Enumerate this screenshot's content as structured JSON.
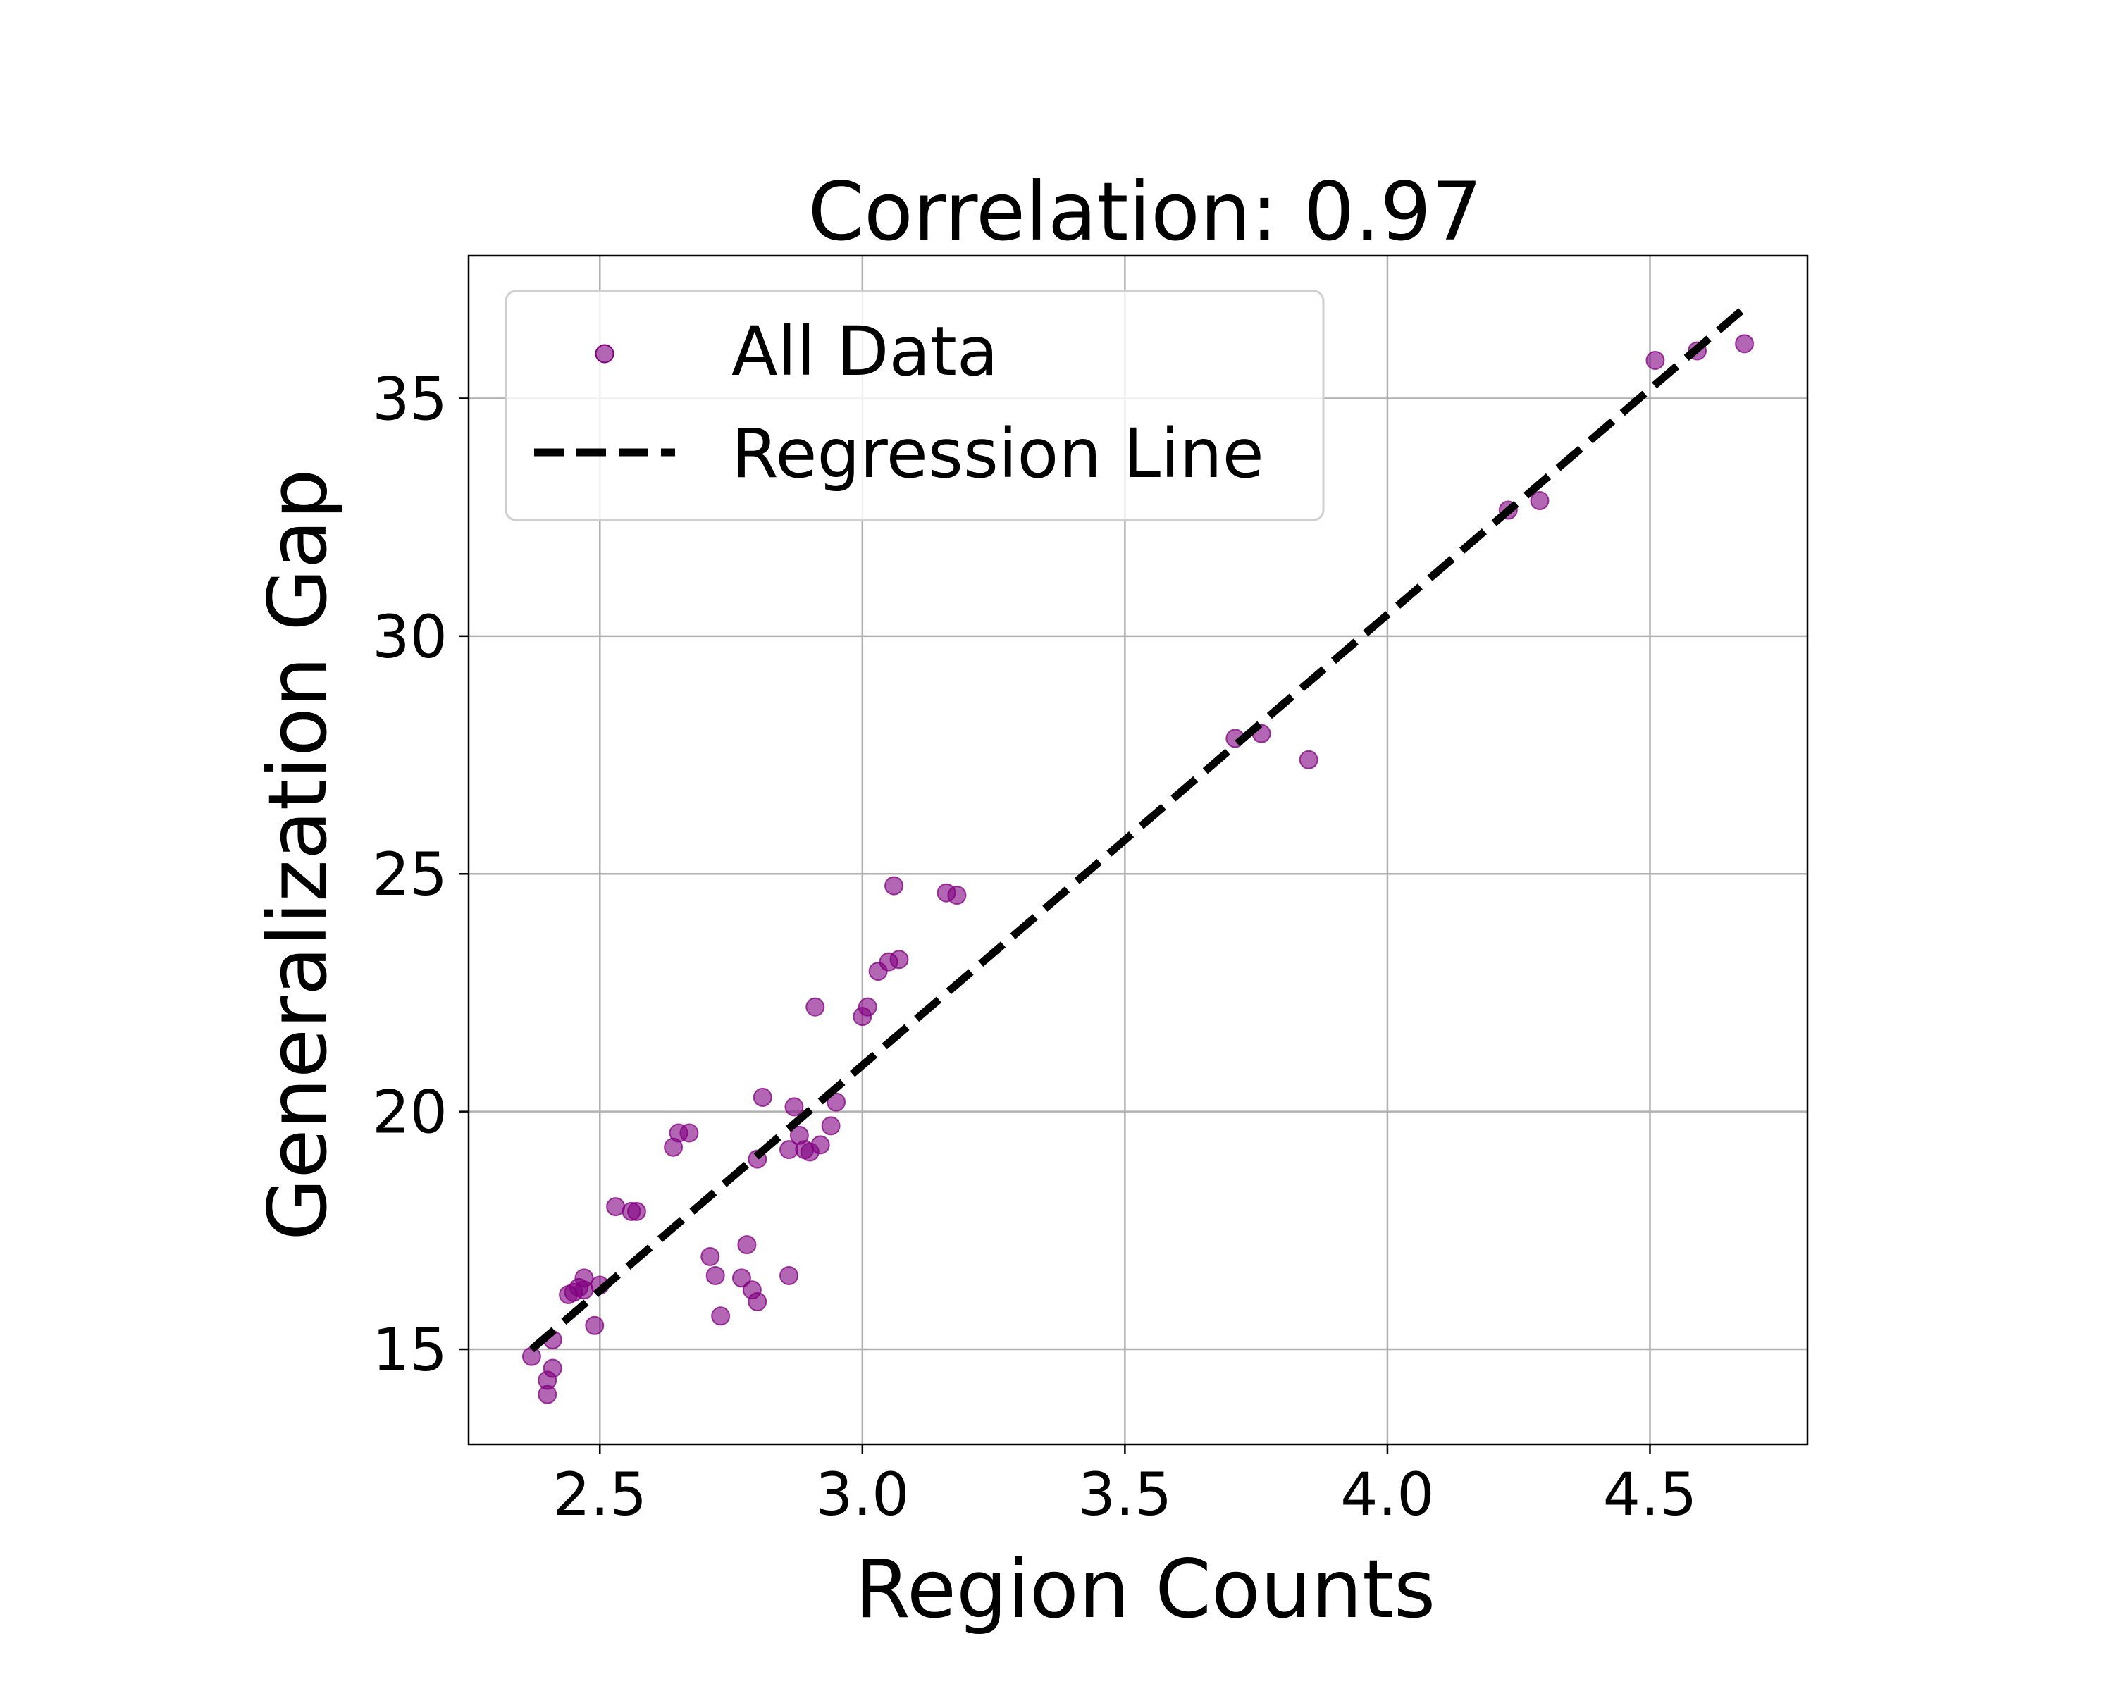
{
  "chart_data": {
    "type": "scatter",
    "title": "Correlation: 0.97",
    "xlabel": "Region Counts",
    "ylabel": "Generalization Gap",
    "xlim": [
      2.25,
      4.8
    ],
    "ylim": [
      13.0,
      38.0
    ],
    "xticks": [
      2.5,
      3.0,
      3.5,
      4.0,
      4.5
    ],
    "xtick_labels": [
      "2.5",
      "3.0",
      "3.5",
      "4.0",
      "4.5"
    ],
    "yticks": [
      15,
      20,
      25,
      30,
      35
    ],
    "ytick_labels": [
      "15",
      "20",
      "25",
      "30",
      "35"
    ],
    "grid": true,
    "legend_position": "top-left",
    "series": [
      {
        "name": "All Data",
        "type": "scatter",
        "color": "#800080",
        "points": [
          [
            2.37,
            14.85
          ],
          [
            2.4,
            14.05
          ],
          [
            2.4,
            14.35
          ],
          [
            2.41,
            14.6
          ],
          [
            2.41,
            15.2
          ],
          [
            2.44,
            16.15
          ],
          [
            2.45,
            16.2
          ],
          [
            2.46,
            16.3
          ],
          [
            2.47,
            16.5
          ],
          [
            2.47,
            16.25
          ],
          [
            2.49,
            15.5
          ],
          [
            2.5,
            16.35
          ],
          [
            2.53,
            18.0
          ],
          [
            2.56,
            17.9
          ],
          [
            2.57,
            17.9
          ],
          [
            2.64,
            19.25
          ],
          [
            2.65,
            19.55
          ],
          [
            2.67,
            19.55
          ],
          [
            2.71,
            16.95
          ],
          [
            2.72,
            16.55
          ],
          [
            2.73,
            15.7
          ],
          [
            2.77,
            16.5
          ],
          [
            2.78,
            17.2
          ],
          [
            2.79,
            16.25
          ],
          [
            2.8,
            16.0
          ],
          [
            2.8,
            19.0
          ],
          [
            2.81,
            20.3
          ],
          [
            2.86,
            19.2
          ],
          [
            2.86,
            16.55
          ],
          [
            2.87,
            20.1
          ],
          [
            2.88,
            19.5
          ],
          [
            2.89,
            19.2
          ],
          [
            2.9,
            19.15
          ],
          [
            2.91,
            22.2
          ],
          [
            2.92,
            19.3
          ],
          [
            2.94,
            19.7
          ],
          [
            2.95,
            20.2
          ],
          [
            3.0,
            22.0
          ],
          [
            3.01,
            22.2
          ],
          [
            3.03,
            22.95
          ],
          [
            3.05,
            23.15
          ],
          [
            3.06,
            24.75
          ],
          [
            3.07,
            23.2
          ],
          [
            3.16,
            24.6
          ],
          [
            3.18,
            24.55
          ],
          [
            3.71,
            27.85
          ],
          [
            3.76,
            27.95
          ],
          [
            3.85,
            27.4
          ],
          [
            4.23,
            32.65
          ],
          [
            4.29,
            32.85
          ],
          [
            4.51,
            35.8
          ],
          [
            4.59,
            36.0
          ],
          [
            4.68,
            36.15
          ]
        ]
      },
      {
        "name": "Regression Line",
        "type": "line",
        "style": "dashed",
        "color": "#000000",
        "x": [
          2.37,
          4.68
        ],
        "y": [
          15.0,
          36.9
        ]
      }
    ]
  }
}
